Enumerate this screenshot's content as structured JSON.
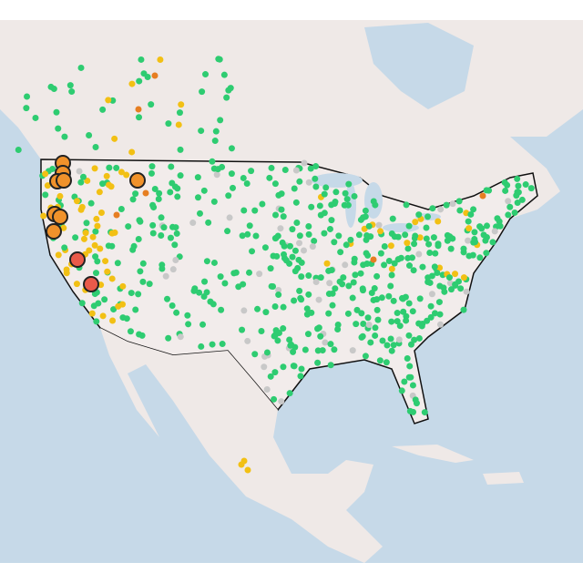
{
  "map": {}
}
